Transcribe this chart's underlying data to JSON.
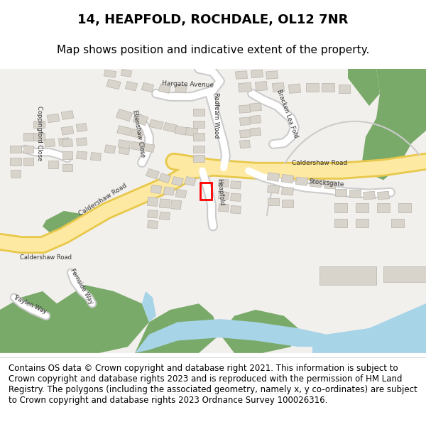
{
  "title_line1": "14, HEAPFOLD, ROCHDALE, OL12 7NR",
  "title_line2": "Map shows position and indicative extent of the property.",
  "footer": "Contains OS data © Crown copyright and database right 2021. This information is subject to Crown copyright and database rights 2023 and is reproduced with the permission of HM Land Registry. The polygons (including the associated geometry, namely x, y co-ordinates) are subject to Crown copyright and database rights 2023 Ordnance Survey 100026316.",
  "map_bg": "#f2f0ed",
  "road_main_color": "#fde9a2",
  "road_main_outline": "#e8c84a",
  "road_secondary_color": "#ffffff",
  "road_secondary_outline": "#cccccc",
  "green_color": "#7aaa6a",
  "water_color": "#a8d4e8",
  "building_color": "#d8d4cc",
  "building_outline": "#b8b4aa",
  "title_fontsize": 13,
  "subtitle_fontsize": 11,
  "footer_fontsize": 8.5,
  "label_fontsize": 6.5,
  "label_small_fontsize": 6.0,
  "fig_width": 6.0,
  "fig_height": 6.25
}
